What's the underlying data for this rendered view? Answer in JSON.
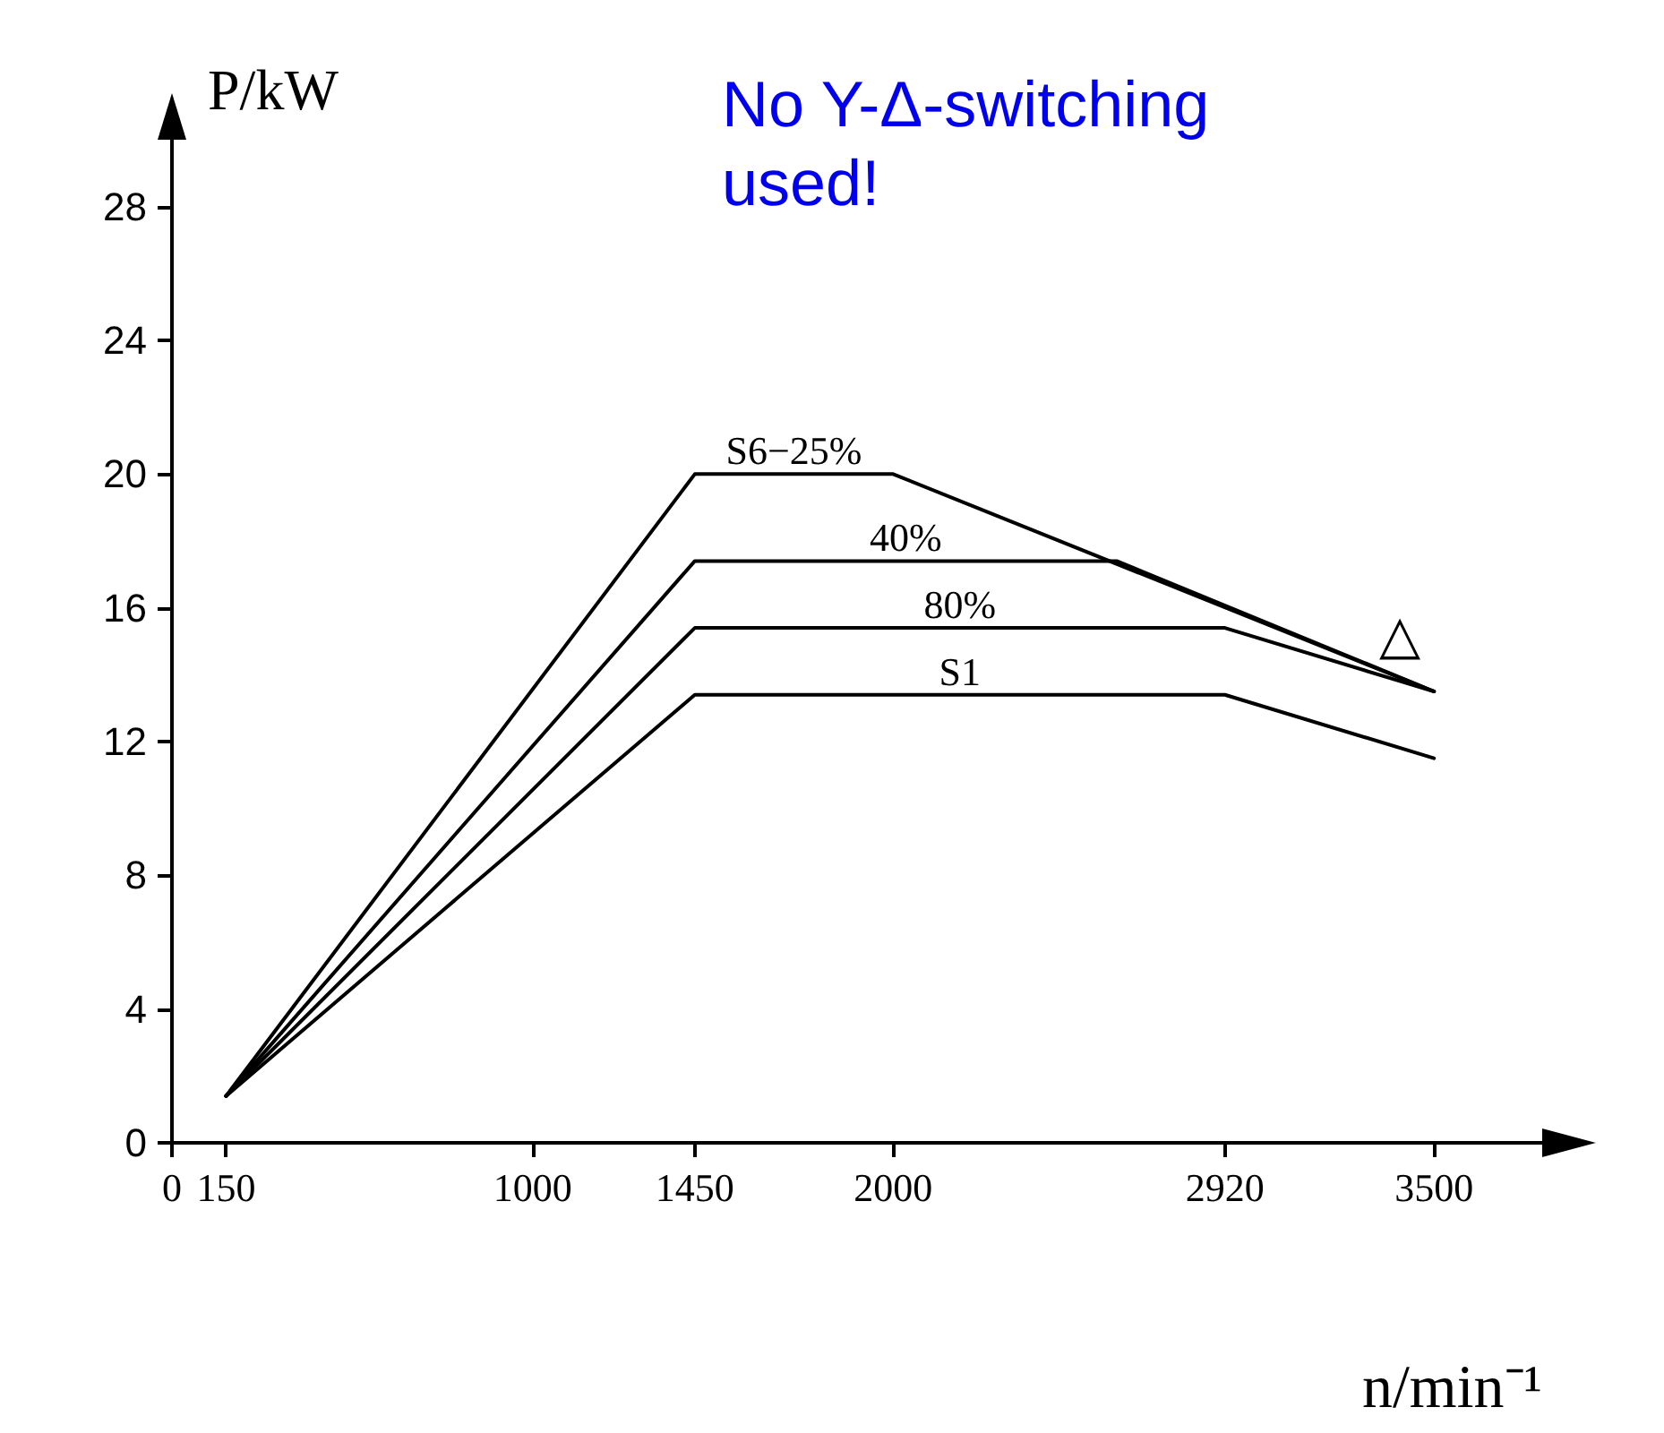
{
  "chart_data": {
    "type": "line",
    "xlabel": "n/min⁻¹",
    "ylabel": "P/kW",
    "xlim": [
      0,
      3800
    ],
    "xticks": [
      0,
      150,
      1000,
      1450,
      2000,
      2920,
      3500
    ],
    "ylim": [
      0,
      30
    ],
    "yticks": [
      0,
      4,
      8,
      12,
      16,
      20,
      24,
      28
    ],
    "grid": false,
    "marker": "none",
    "line_style": "solid",
    "series": [
      {
        "name": "S6−25%",
        "color": "#000000",
        "x": [
          150,
          1450,
          2000,
          3500
        ],
        "values": [
          1.4,
          20,
          20,
          13.5
        ]
      },
      {
        "name": "40%",
        "color": "#000000",
        "x": [
          150,
          1450,
          2620,
          3500
        ],
        "values": [
          1.4,
          17.4,
          17.4,
          13.5
        ]
      },
      {
        "name": "80%",
        "color": "#000000",
        "x": [
          150,
          1450,
          2920,
          3500
        ],
        "values": [
          1.4,
          15.4,
          15.4,
          13.5
        ]
      },
      {
        "name": "S1",
        "color": "#000000",
        "x": [
          150,
          1450,
          2920,
          3500
        ],
        "values": [
          1.4,
          13.4,
          13.4,
          11.5
        ]
      }
    ],
    "annotations": [
      "No Y-Δ-switching\nused!",
      "△"
    ]
  }
}
